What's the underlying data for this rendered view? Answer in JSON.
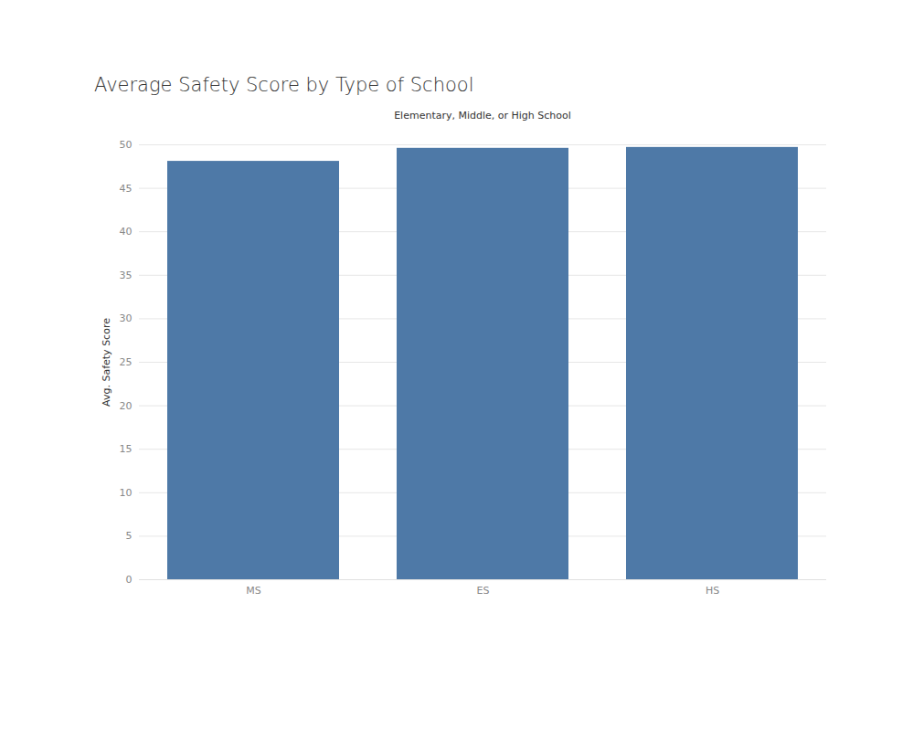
{
  "chart_data": {
    "type": "bar",
    "title": "Average Safety Score by Type of School",
    "x_label": "Elementary, Middle, or High School",
    "y_label": "Avg. Safety Score",
    "categories": [
      "MS",
      "ES",
      "HS"
    ],
    "values": [
      48.1,
      49.6,
      49.7
    ],
    "color": "#4e79a7",
    "ylim": [
      0,
      50
    ],
    "yticks": [
      0,
      5,
      10,
      15,
      20,
      25,
      30,
      35,
      40,
      45,
      50
    ],
    "grid": true
  }
}
